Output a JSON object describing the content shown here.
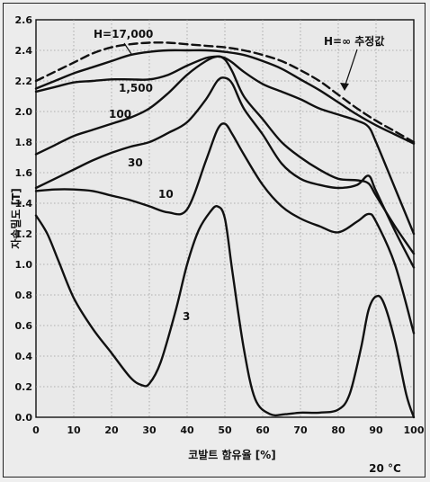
{
  "chart_data": {
    "type": "line",
    "title": "",
    "xlabel": "코발트 함유율 [%]",
    "ylabel": "자속밀도 [T]",
    "xlim": [
      0,
      100
    ],
    "ylim": [
      0,
      2.6
    ],
    "x_ticks": [
      "0",
      "10",
      "20",
      "30",
      "40",
      "50",
      "60",
      "70",
      "80",
      "90",
      "100"
    ],
    "y_ticks": [
      "0.0",
      "0.2",
      "0.4",
      "0.6",
      "0.8",
      "1.0",
      "1.2",
      "1.4",
      "1.6",
      "1.8",
      "2.0",
      "2.2",
      "2.4",
      "2.6"
    ],
    "grid": true,
    "temperature_note": "20 °C",
    "series": [
      {
        "name": "H=∞ 추정값",
        "style": "dashed",
        "x": [
          0,
          5,
          10,
          15,
          20,
          25,
          30,
          35,
          40,
          45,
          50,
          55,
          60,
          65,
          70,
          75,
          80,
          85,
          90,
          95,
          100
        ],
        "y": [
          2.2,
          2.26,
          2.32,
          2.38,
          2.42,
          2.44,
          2.45,
          2.45,
          2.44,
          2.43,
          2.42,
          2.4,
          2.37,
          2.33,
          2.27,
          2.2,
          2.11,
          2.02,
          1.94,
          1.87,
          1.8
        ]
      },
      {
        "name": "H=17,000",
        "x": [
          0,
          5,
          10,
          15,
          20,
          25,
          30,
          35,
          40,
          45,
          50,
          55,
          60,
          65,
          70,
          75,
          80,
          85,
          90,
          95,
          100
        ],
        "y": [
          2.15,
          2.2,
          2.25,
          2.29,
          2.33,
          2.37,
          2.39,
          2.4,
          2.4,
          2.4,
          2.39,
          2.37,
          2.33,
          2.28,
          2.21,
          2.14,
          2.06,
          1.98,
          1.91,
          1.85,
          1.79
        ]
      },
      {
        "name": "1,500",
        "x": [
          0,
          5,
          10,
          15,
          20,
          25,
          30,
          35,
          40,
          45,
          48,
          50,
          52,
          55,
          60,
          65,
          70,
          75,
          80,
          85,
          88,
          90,
          95,
          100
        ],
        "y": [
          2.13,
          2.16,
          2.19,
          2.2,
          2.21,
          2.21,
          2.21,
          2.24,
          2.3,
          2.35,
          2.36,
          2.35,
          2.32,
          2.26,
          2.18,
          2.13,
          2.08,
          2.02,
          1.98,
          1.94,
          1.9,
          1.8,
          1.5,
          1.2
        ]
      },
      {
        "name": "100",
        "x": [
          0,
          5,
          10,
          15,
          20,
          25,
          30,
          35,
          40,
          45,
          48,
          50,
          52,
          55,
          60,
          65,
          70,
          75,
          80,
          85,
          88,
          90,
          95,
          100
        ],
        "y": [
          1.72,
          1.78,
          1.84,
          1.88,
          1.92,
          1.96,
          2.02,
          2.12,
          2.24,
          2.33,
          2.36,
          2.34,
          2.26,
          2.1,
          1.95,
          1.8,
          1.7,
          1.62,
          1.56,
          1.55,
          1.53,
          1.45,
          1.25,
          1.07
        ]
      },
      {
        "name": "30",
        "x": [
          0,
          5,
          10,
          15,
          20,
          25,
          30,
          35,
          40,
          45,
          48,
          50,
          52,
          55,
          60,
          65,
          70,
          75,
          80,
          85,
          88,
          90,
          95,
          100
        ],
        "y": [
          1.5,
          1.56,
          1.62,
          1.68,
          1.73,
          1.77,
          1.8,
          1.86,
          1.93,
          2.08,
          2.2,
          2.22,
          2.18,
          2.02,
          1.85,
          1.66,
          1.56,
          1.52,
          1.5,
          1.52,
          1.58,
          1.48,
          1.22,
          0.98
        ]
      },
      {
        "name": "10",
        "x": [
          0,
          5,
          10,
          15,
          20,
          25,
          30,
          35,
          40,
          45,
          48,
          50,
          52,
          55,
          60,
          65,
          70,
          75,
          80,
          85,
          88,
          90,
          95,
          100
        ],
        "y": [
          1.48,
          1.49,
          1.49,
          1.48,
          1.45,
          1.42,
          1.38,
          1.34,
          1.36,
          1.68,
          1.88,
          1.92,
          1.85,
          1.72,
          1.52,
          1.38,
          1.3,
          1.25,
          1.21,
          1.28,
          1.33,
          1.28,
          1.0,
          0.55
        ]
      },
      {
        "name": "3",
        "x": [
          0,
          3,
          6,
          10,
          15,
          20,
          25,
          28,
          30,
          33,
          37,
          40,
          43,
          46,
          48,
          50,
          52,
          55,
          58,
          62,
          66,
          70,
          75,
          80,
          83,
          86,
          88,
          90,
          92,
          95,
          98,
          100
        ],
        "y": [
          1.32,
          1.2,
          1.02,
          0.78,
          0.58,
          0.42,
          0.26,
          0.21,
          0.22,
          0.36,
          0.7,
          1.0,
          1.22,
          1.34,
          1.38,
          1.3,
          0.95,
          0.45,
          0.12,
          0.02,
          0.02,
          0.03,
          0.03,
          0.05,
          0.15,
          0.45,
          0.7,
          0.79,
          0.75,
          0.5,
          0.15,
          0.0
        ]
      }
    ],
    "curve_labels": [
      {
        "text": "H=17,000"
      },
      {
        "text": "1,500"
      },
      {
        "text": "100"
      },
      {
        "text": "30"
      },
      {
        "text": "10"
      },
      {
        "text": "3"
      },
      {
        "text": "H=∞ 추정값"
      }
    ]
  }
}
